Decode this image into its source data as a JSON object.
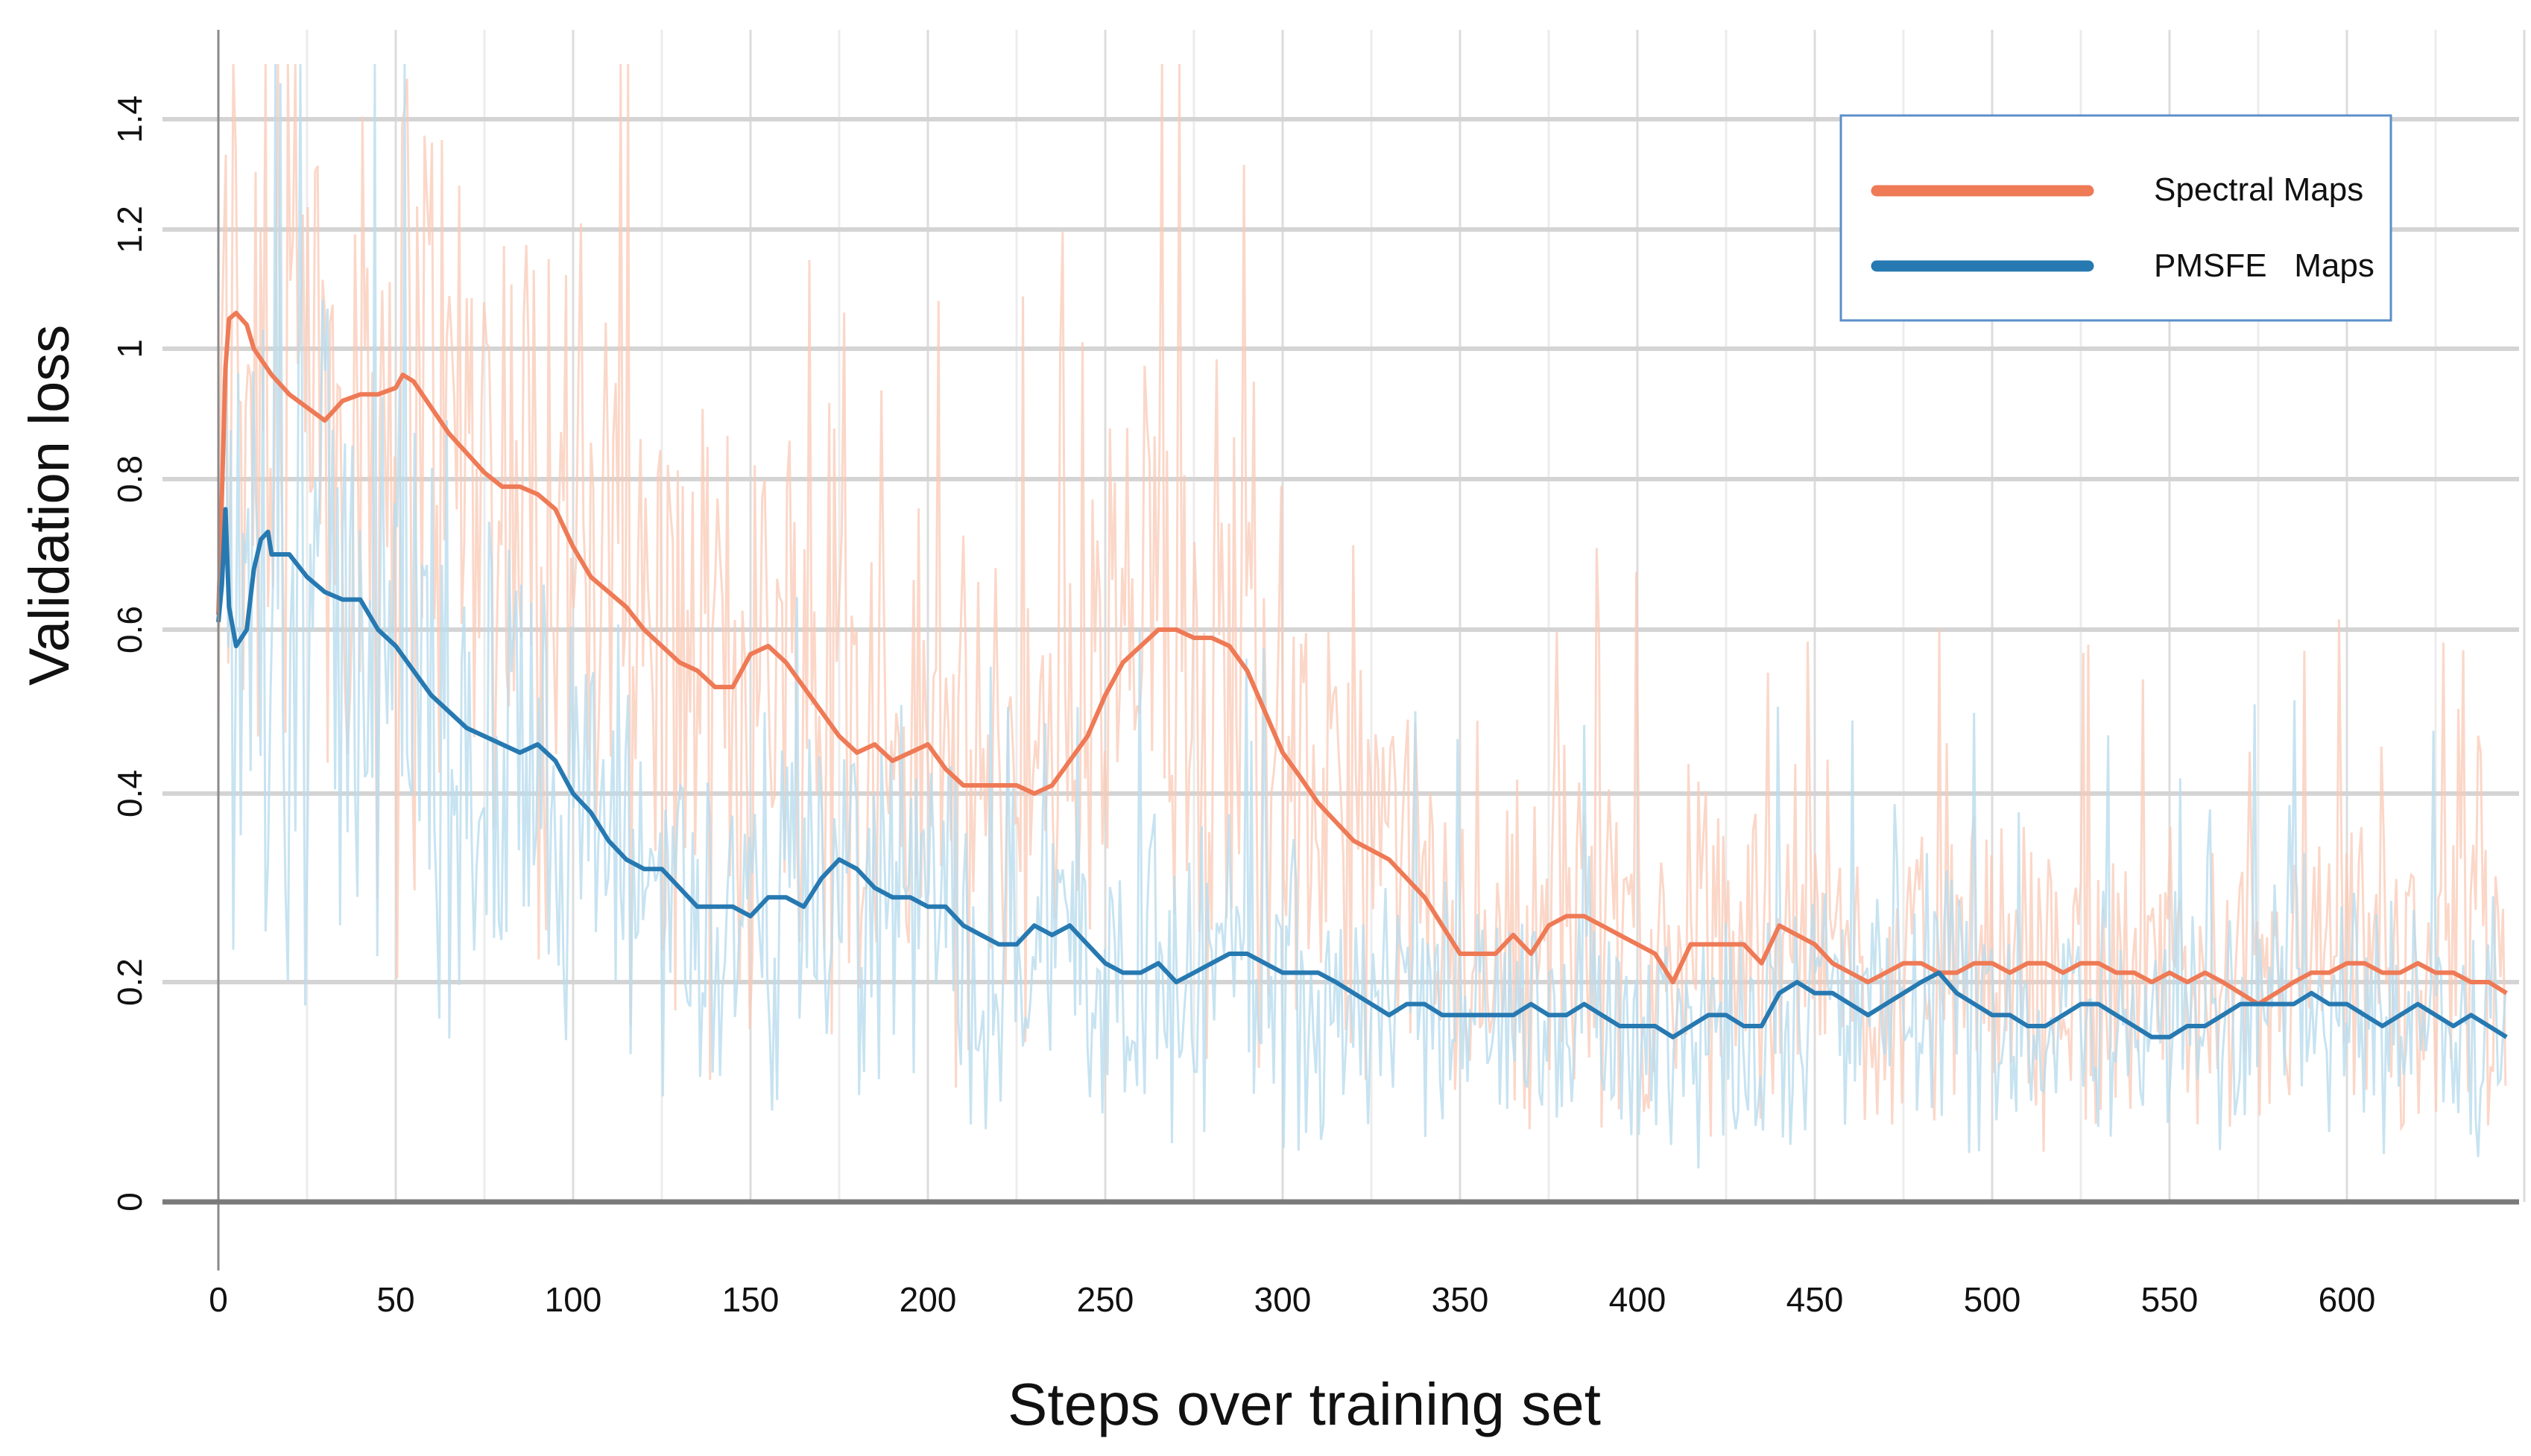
{
  "chart_data": {
    "type": "line",
    "title": "",
    "xlabel": "Steps over training set",
    "ylabel": "Validation loss",
    "xlim": [
      -2,
      645
    ],
    "ylim": [
      0,
      1.5
    ],
    "y_scale": "nonlinear (as printed: 0, 0.2, 0.4 ... 1.4)",
    "x_ticks": [
      0,
      50,
      100,
      150,
      200,
      250,
      300,
      350,
      400,
      450,
      500,
      550,
      600
    ],
    "x_tick_labels": [
      "0",
      "50",
      "100",
      "150",
      "200",
      "250",
      "300",
      "350",
      "400",
      "450",
      "500",
      "550",
      "600"
    ],
    "y_ticks": [
      0,
      0.2,
      0.4,
      0.6,
      0.8,
      1,
      1.2,
      1.4
    ],
    "y_tick_labels": [
      "0",
      "0.2",
      "0.4",
      "0.6",
      "0.8",
      "1",
      "1.2",
      "1.4"
    ],
    "grid": true,
    "legend": {
      "position": "top-right",
      "entries": [
        "Spectral Maps",
        "PMSFE   Maps"
      ]
    },
    "series": [
      {
        "name": "Spectral Maps",
        "color": "#EE7A56",
        "raw_color": "#F9C9B6",
        "smoothed_points": [
          [
            0,
            0.62
          ],
          [
            1,
            0.78
          ],
          [
            2,
            0.97
          ],
          [
            3,
            1.05
          ],
          [
            5,
            1.06
          ],
          [
            8,
            1.04
          ],
          [
            10,
            1.0
          ],
          [
            15,
            0.96
          ],
          [
            20,
            0.93
          ],
          [
            25,
            0.91
          ],
          [
            30,
            0.89
          ],
          [
            35,
            0.92
          ],
          [
            40,
            0.93
          ],
          [
            45,
            0.93
          ],
          [
            50,
            0.94
          ],
          [
            52,
            0.96
          ],
          [
            55,
            0.95
          ],
          [
            60,
            0.91
          ],
          [
            65,
            0.87
          ],
          [
            70,
            0.84
          ],
          [
            75,
            0.81
          ],
          [
            80,
            0.79
          ],
          [
            85,
            0.79
          ],
          [
            90,
            0.78
          ],
          [
            95,
            0.76
          ],
          [
            100,
            0.71
          ],
          [
            105,
            0.67
          ],
          [
            110,
            0.65
          ],
          [
            115,
            0.63
          ],
          [
            120,
            0.6
          ],
          [
            125,
            0.58
          ],
          [
            130,
            0.56
          ],
          [
            135,
            0.55
          ],
          [
            140,
            0.53
          ],
          [
            145,
            0.53
          ],
          [
            150,
            0.57
          ],
          [
            155,
            0.58
          ],
          [
            160,
            0.56
          ],
          [
            165,
            0.53
          ],
          [
            170,
            0.5
          ],
          [
            175,
            0.47
          ],
          [
            180,
            0.45
          ],
          [
            185,
            0.46
          ],
          [
            190,
            0.44
          ],
          [
            195,
            0.45
          ],
          [
            200,
            0.46
          ],
          [
            205,
            0.43
          ],
          [
            210,
            0.41
          ],
          [
            215,
            0.41
          ],
          [
            220,
            0.41
          ],
          [
            225,
            0.41
          ],
          [
            230,
            0.4
          ],
          [
            235,
            0.41
          ],
          [
            240,
            0.44
          ],
          [
            245,
            0.47
          ],
          [
            250,
            0.52
          ],
          [
            255,
            0.56
          ],
          [
            260,
            0.58
          ],
          [
            265,
            0.6
          ],
          [
            270,
            0.6
          ],
          [
            275,
            0.59
          ],
          [
            280,
            0.59
          ],
          [
            285,
            0.58
          ],
          [
            290,
            0.55
          ],
          [
            295,
            0.5
          ],
          [
            300,
            0.45
          ],
          [
            305,
            0.42
          ],
          [
            310,
            0.39
          ],
          [
            315,
            0.37
          ],
          [
            320,
            0.35
          ],
          [
            325,
            0.34
          ],
          [
            330,
            0.33
          ],
          [
            335,
            0.31
          ],
          [
            340,
            0.29
          ],
          [
            345,
            0.26
          ],
          [
            350,
            0.23
          ],
          [
            355,
            0.23
          ],
          [
            360,
            0.23
          ],
          [
            365,
            0.25
          ],
          [
            370,
            0.23
          ],
          [
            375,
            0.26
          ],
          [
            380,
            0.27
          ],
          [
            385,
            0.27
          ],
          [
            390,
            0.26
          ],
          [
            395,
            0.25
          ],
          [
            400,
            0.24
          ],
          [
            405,
            0.23
          ],
          [
            410,
            0.2
          ],
          [
            415,
            0.24
          ],
          [
            420,
            0.24
          ],
          [
            425,
            0.24
          ],
          [
            430,
            0.24
          ],
          [
            435,
            0.22
          ],
          [
            440,
            0.26
          ],
          [
            445,
            0.25
          ],
          [
            450,
            0.24
          ],
          [
            455,
            0.22
          ],
          [
            460,
            0.21
          ],
          [
            465,
            0.2
          ],
          [
            470,
            0.21
          ],
          [
            475,
            0.22
          ],
          [
            480,
            0.22
          ],
          [
            485,
            0.21
          ],
          [
            490,
            0.21
          ],
          [
            495,
            0.22
          ],
          [
            500,
            0.22
          ],
          [
            505,
            0.21
          ],
          [
            510,
            0.22
          ],
          [
            515,
            0.22
          ],
          [
            520,
            0.21
          ],
          [
            525,
            0.22
          ],
          [
            530,
            0.22
          ],
          [
            535,
            0.21
          ],
          [
            540,
            0.21
          ],
          [
            545,
            0.2
          ],
          [
            550,
            0.21
          ],
          [
            555,
            0.2
          ],
          [
            560,
            0.21
          ],
          [
            565,
            0.2
          ],
          [
            570,
            0.19
          ],
          [
            575,
            0.18
          ],
          [
            580,
            0.19
          ],
          [
            585,
            0.2
          ],
          [
            590,
            0.21
          ],
          [
            595,
            0.21
          ],
          [
            600,
            0.22
          ],
          [
            605,
            0.22
          ],
          [
            610,
            0.21
          ],
          [
            615,
            0.21
          ],
          [
            620,
            0.22
          ],
          [
            625,
            0.21
          ],
          [
            630,
            0.21
          ],
          [
            635,
            0.2
          ],
          [
            640,
            0.2
          ],
          [
            645,
            0.19
          ]
        ]
      },
      {
        "name": "PMSFE   Maps",
        "color": "#2779B1",
        "raw_color": "#B9DCEE",
        "smoothed_points": [
          [
            0,
            0.61
          ],
          [
            1,
            0.66
          ],
          [
            2,
            0.76
          ],
          [
            3,
            0.63
          ],
          [
            5,
            0.58
          ],
          [
            8,
            0.6
          ],
          [
            10,
            0.68
          ],
          [
            12,
            0.72
          ],
          [
            14,
            0.73
          ],
          [
            15,
            0.7
          ],
          [
            20,
            0.7
          ],
          [
            25,
            0.67
          ],
          [
            30,
            0.65
          ],
          [
            35,
            0.64
          ],
          [
            40,
            0.64
          ],
          [
            45,
            0.6
          ],
          [
            50,
            0.58
          ],
          [
            55,
            0.55
          ],
          [
            60,
            0.52
          ],
          [
            65,
            0.5
          ],
          [
            70,
            0.48
          ],
          [
            75,
            0.47
          ],
          [
            80,
            0.46
          ],
          [
            85,
            0.45
          ],
          [
            90,
            0.46
          ],
          [
            95,
            0.44
          ],
          [
            100,
            0.4
          ],
          [
            105,
            0.38
          ],
          [
            110,
            0.35
          ],
          [
            115,
            0.33
          ],
          [
            120,
            0.32
          ],
          [
            125,
            0.32
          ],
          [
            130,
            0.3
          ],
          [
            135,
            0.28
          ],
          [
            140,
            0.28
          ],
          [
            145,
            0.28
          ],
          [
            150,
            0.27
          ],
          [
            155,
            0.29
          ],
          [
            160,
            0.29
          ],
          [
            165,
            0.28
          ],
          [
            170,
            0.31
          ],
          [
            175,
            0.33
          ],
          [
            180,
            0.32
          ],
          [
            185,
            0.3
          ],
          [
            190,
            0.29
          ],
          [
            195,
            0.29
          ],
          [
            200,
            0.28
          ],
          [
            205,
            0.28
          ],
          [
            210,
            0.26
          ],
          [
            215,
            0.25
          ],
          [
            220,
            0.24
          ],
          [
            225,
            0.24
          ],
          [
            230,
            0.26
          ],
          [
            235,
            0.25
          ],
          [
            240,
            0.26
          ],
          [
            245,
            0.24
          ],
          [
            250,
            0.22
          ],
          [
            255,
            0.21
          ],
          [
            260,
            0.21
          ],
          [
            265,
            0.22
          ],
          [
            270,
            0.2
          ],
          [
            275,
            0.21
          ],
          [
            280,
            0.22
          ],
          [
            285,
            0.23
          ],
          [
            290,
            0.23
          ],
          [
            295,
            0.22
          ],
          [
            300,
            0.21
          ],
          [
            305,
            0.21
          ],
          [
            310,
            0.21
          ],
          [
            315,
            0.2
          ],
          [
            320,
            0.19
          ],
          [
            325,
            0.18
          ],
          [
            330,
            0.17
          ],
          [
            335,
            0.18
          ],
          [
            340,
            0.18
          ],
          [
            345,
            0.17
          ],
          [
            350,
            0.17
          ],
          [
            355,
            0.17
          ],
          [
            360,
            0.17
          ],
          [
            365,
            0.17
          ],
          [
            370,
            0.18
          ],
          [
            375,
            0.17
          ],
          [
            380,
            0.17
          ],
          [
            385,
            0.18
          ],
          [
            390,
            0.17
          ],
          [
            395,
            0.16
          ],
          [
            400,
            0.16
          ],
          [
            405,
            0.16
          ],
          [
            410,
            0.15
          ],
          [
            415,
            0.16
          ],
          [
            420,
            0.17
          ],
          [
            425,
            0.17
          ],
          [
            430,
            0.16
          ],
          [
            435,
            0.16
          ],
          [
            440,
            0.19
          ],
          [
            445,
            0.2
          ],
          [
            450,
            0.19
          ],
          [
            455,
            0.19
          ],
          [
            460,
            0.18
          ],
          [
            465,
            0.17
          ],
          [
            470,
            0.18
          ],
          [
            475,
            0.19
          ],
          [
            480,
            0.2
          ],
          [
            485,
            0.21
          ],
          [
            490,
            0.19
          ],
          [
            495,
            0.18
          ],
          [
            500,
            0.17
          ],
          [
            505,
            0.17
          ],
          [
            510,
            0.16
          ],
          [
            515,
            0.16
          ],
          [
            520,
            0.17
          ],
          [
            525,
            0.18
          ],
          [
            530,
            0.18
          ],
          [
            535,
            0.17
          ],
          [
            540,
            0.16
          ],
          [
            545,
            0.15
          ],
          [
            550,
            0.15
          ],
          [
            555,
            0.16
          ],
          [
            560,
            0.16
          ],
          [
            565,
            0.17
          ],
          [
            570,
            0.18
          ],
          [
            575,
            0.18
          ],
          [
            580,
            0.18
          ],
          [
            585,
            0.18
          ],
          [
            590,
            0.19
          ],
          [
            595,
            0.18
          ],
          [
            600,
            0.18
          ],
          [
            605,
            0.17
          ],
          [
            610,
            0.16
          ],
          [
            615,
            0.17
          ],
          [
            620,
            0.18
          ],
          [
            625,
            0.17
          ],
          [
            630,
            0.16
          ],
          [
            635,
            0.17
          ],
          [
            640,
            0.16
          ],
          [
            645,
            0.15
          ]
        ]
      }
    ]
  }
}
